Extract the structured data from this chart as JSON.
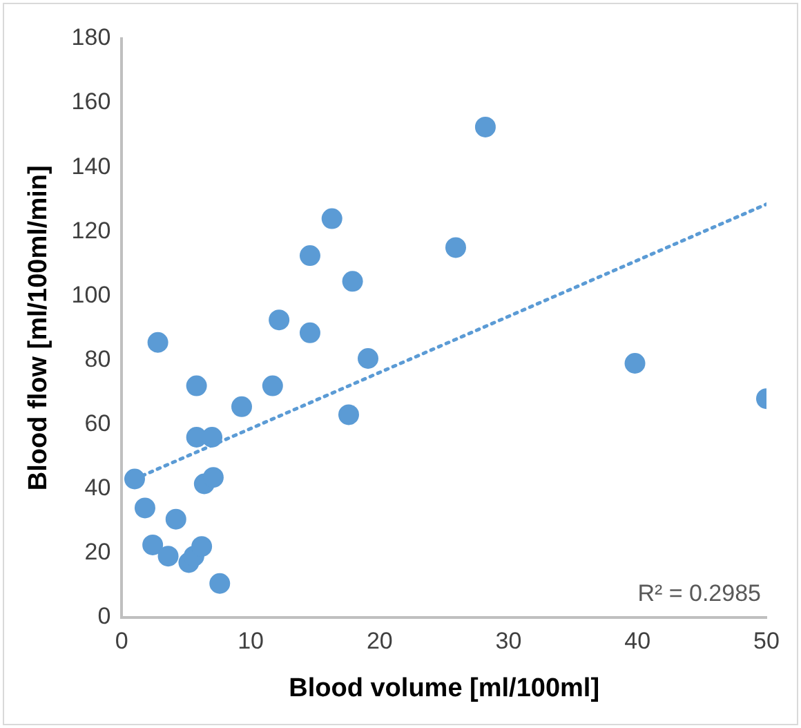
{
  "chart_data": {
    "type": "scatter",
    "xlabel": "Blood volume [ml/100ml]",
    "ylabel": "Blood flow [ml/100ml/min]",
    "xlim": [
      0,
      50
    ],
    "xticks": [
      0,
      10,
      20,
      30,
      40,
      50
    ],
    "ylim": [
      0,
      180
    ],
    "yticks": [
      0,
      20,
      40,
      60,
      80,
      100,
      120,
      140,
      160,
      180
    ],
    "grid": false,
    "legend": false,
    "marker": "circle",
    "series": [
      {
        "color": "#5b9bd5",
        "x": [
          1,
          1.8,
          2.4,
          2.8,
          3.6,
          4.2,
          5.2,
          5.6,
          6.2,
          5.8,
          5.8,
          7,
          6.4,
          7.1,
          7.6,
          9.3,
          11.7,
          12.2,
          14.6,
          14.6,
          16.3,
          17.9,
          17.6,
          19.1,
          25.9,
          28.2,
          39.8,
          50
        ],
        "values": [
          43,
          34,
          22.5,
          85.5,
          19,
          30.5,
          17,
          19,
          22,
          72,
          56,
          56,
          41.5,
          43.5,
          10.5,
          65.5,
          72,
          92.5,
          88.5,
          112.5,
          124,
          104.5,
          63,
          80.5,
          115,
          152.5,
          79,
          68
        ]
      },
      {
        "type": "line",
        "color": "#5b9bd5",
        "line_style": "dotted",
        "marker": "none",
        "x": [
          1,
          50
        ],
        "values": [
          43,
          128.5
        ]
      }
    ],
    "annotations": [
      "R² = 0.2985"
    ]
  }
}
